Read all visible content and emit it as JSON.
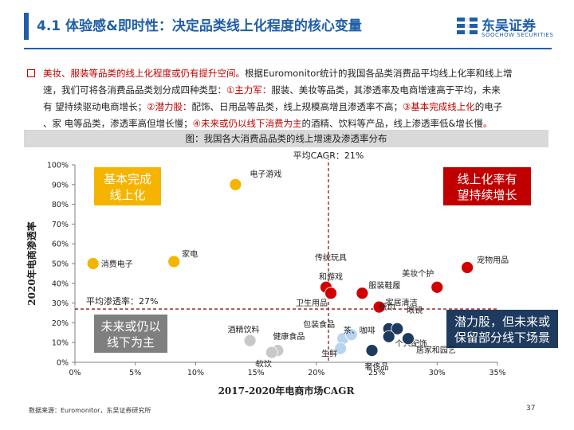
{
  "header": {
    "title": "4.1 体验感&即时性：决定品类线上化程度的核心变量",
    "logo_cn": "东吴证券",
    "logo_en": "SOOCHOW SECURITIES"
  },
  "body": {
    "intro_red": "美妆、服装等品类的线上化程度或仍有提升空间。",
    "line1_rest": "根据Euromonitor统计的我国各品类消费品平均线上化率和线上增",
    "line2_a": "速，我们可将各消费品品类划分成四种类型：",
    "line2_red": "①主力军：",
    "line2_b": "服装、美妆等品类，其渗透率及电商增速高于平均，未来",
    "line3_a": "有 望持续驱动电商增长；",
    "line3_red": "②潜力股：",
    "line3_b": "配饰、日用品等品类，线上规模高增且渗透率不高；",
    "line3_red2": "③基本完成线上化",
    "line3_c": "的电子",
    "line4_a": "、家 电等品类，渗透率高但增长慢；",
    "line4_red": "④未来或仍以线下消费为主",
    "line4_b": "的酒精、饮料等产品，线上渗透率低&增长慢",
    "line4_red_end": "。"
  },
  "caption": "图：我国各大消费品品类的线上增速及渗透率分布",
  "chart_data": {
    "type": "scatter",
    "xlabel": "2017-2020年电商市场CAGR",
    "ylabel": "2020年电商渗透率",
    "xlim": [
      0,
      35
    ],
    "ylim": [
      0,
      100
    ],
    "x_ticks": [
      "0%",
      "5%",
      "10%",
      "15%",
      "20%",
      "25%",
      "30%",
      "35%"
    ],
    "y_ticks": [
      "0%",
      "10%",
      "20%",
      "30%",
      "40%",
      "50%",
      "60%",
      "70%",
      "80%",
      "90%",
      "100%"
    ],
    "avg_cagr_label": "平均CAGR：21%",
    "avg_cagr": 21,
    "avg_pen_label": "平均渗透率：27%",
    "avg_pen": 27,
    "quadrants": {
      "top_left": "基本完成\n线上化",
      "top_right": "线上化率有\n望持续增长",
      "bottom_left": "未来或仍以\n线下为主",
      "bottom_right": "潜力股，但未来或\n保留部分线下场景"
    },
    "colors": {
      "yellow": "#f5b400",
      "red": "#d00000",
      "grey": "#c8c8c8",
      "lightblue": "#b8d4ef",
      "darkblue": "#1f3a5f",
      "quad_yellow": "#f5b400",
      "quad_red": "#c00000",
      "quad_grey": "#7f7f7f",
      "quad_blue": "#1f3a5f",
      "avg_line": "#8b1a1a"
    },
    "points": [
      {
        "label": "电子游戏",
        "x": 13.3,
        "y": 90,
        "color": "yellow"
      },
      {
        "label": "消费电子",
        "x": 1.5,
        "y": 50,
        "color": "yellow"
      },
      {
        "label": "家电",
        "x": 8.2,
        "y": 51,
        "color": "yellow"
      },
      {
        "label": "传统玩具和游戏",
        "x": 20.8,
        "y": 38,
        "color": "red"
      },
      {
        "label": "卫生用品",
        "x": 21.2,
        "y": 35,
        "color": "red"
      },
      {
        "label": "服装鞋履",
        "x": 23.8,
        "y": 35,
        "color": "red"
      },
      {
        "label": "家居清洁",
        "x": 25.2,
        "y": 28,
        "color": "red"
      },
      {
        "label": "美妆个护",
        "x": 30.0,
        "y": 38,
        "color": "red"
      },
      {
        "label": "宠物用品",
        "x": 32.5,
        "y": 48,
        "color": "red"
      },
      {
        "label": "酒精饮料",
        "x": 14.5,
        "y": 11,
        "color": "grey"
      },
      {
        "label": "健康食品",
        "x": 16.8,
        "y": 6,
        "color": "grey"
      },
      {
        "label": "软饮",
        "x": 16.3,
        "y": 5,
        "color": "grey"
      },
      {
        "label": "包装食品",
        "x": 22.2,
        "y": 12,
        "color": "lightblue"
      },
      {
        "label": "茶、咖啡",
        "x": 22.9,
        "y": 14,
        "color": "lightblue"
      },
      {
        "label": "生鲜",
        "x": 22.0,
        "y": 7,
        "color": "lightblue"
      },
      {
        "label": "纸巾",
        "x": 26.0,
        "y": 17,
        "color": "darkblue"
      },
      {
        "label": "眼镜",
        "x": 26.7,
        "y": 17,
        "color": "darkblue"
      },
      {
        "label": "个人配饰",
        "x": 26.0,
        "y": 13,
        "color": "darkblue"
      },
      {
        "label": "居家和园艺",
        "x": 27.6,
        "y": 12,
        "color": "darkblue"
      },
      {
        "label": "奢侈品",
        "x": 24.6,
        "y": 6,
        "color": "darkblue"
      }
    ]
  },
  "footer": {
    "source": "数据来源：Euromonitor，东吴证券研究所",
    "page_number": "37"
  }
}
